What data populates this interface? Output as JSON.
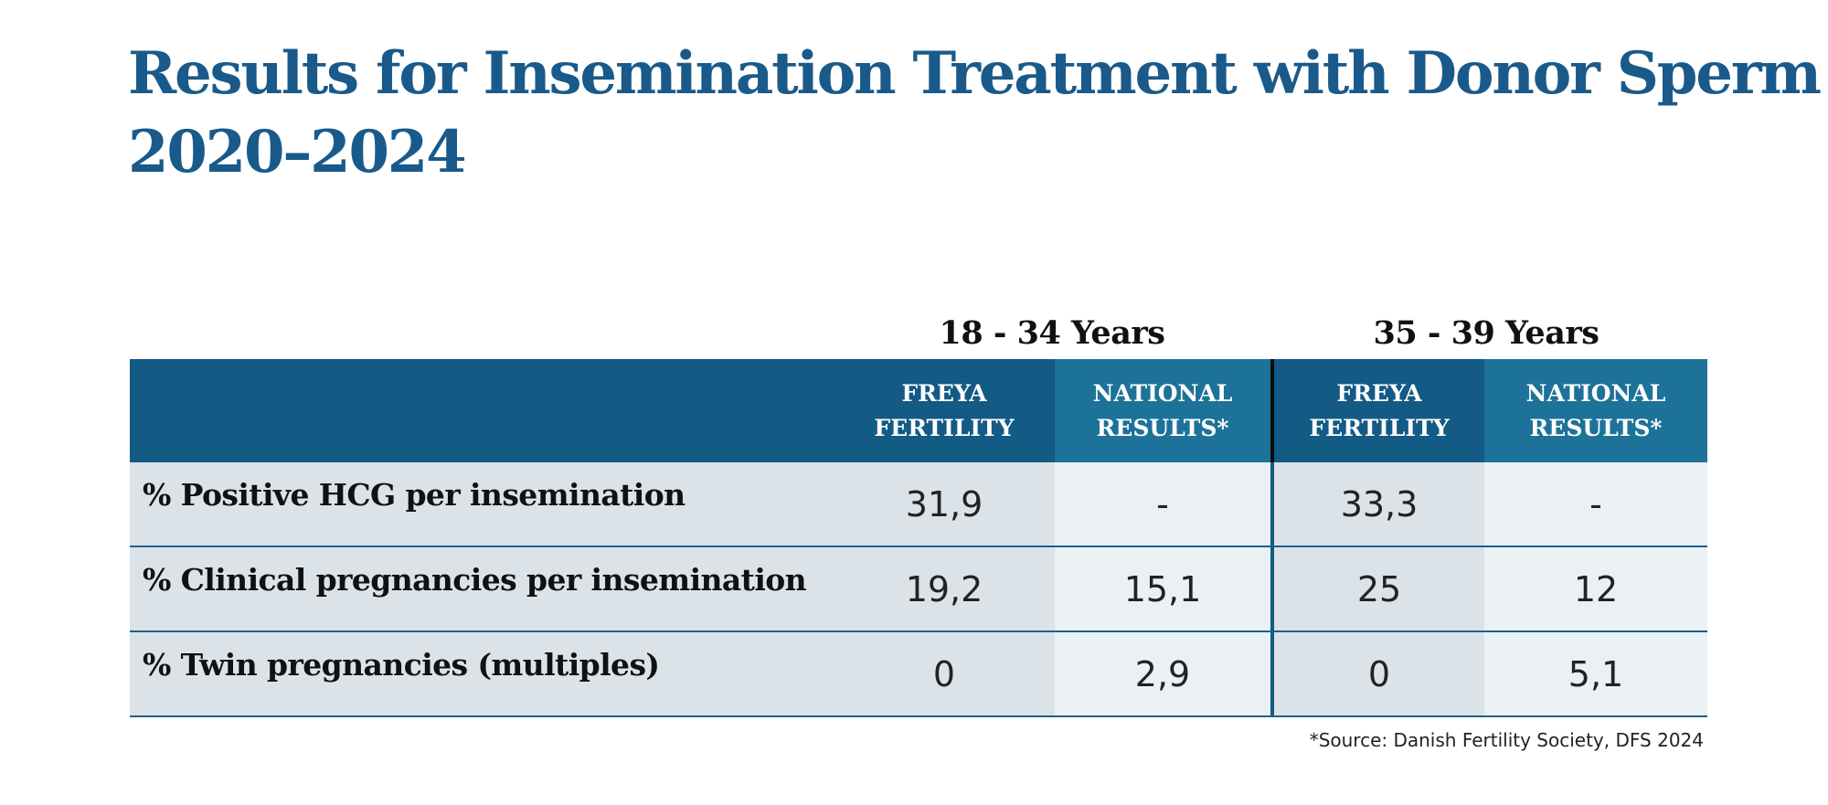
{
  "title_lines": [
    "Results for Insemination Treatment with Donor Sperm",
    "2020–2024"
  ],
  "chart_data": {
    "type": "table",
    "title": "Results for Insemination Treatment with Donor Sperm 2020–2024",
    "groups": [
      "18 - 34 Years",
      "35 - 39 Years"
    ],
    "columns": [
      "FREYA\nFERTILITY",
      "NATIONAL\nRESULTS*",
      "FREYA\nFERTILITY",
      "NATIONAL\nRESULTS*"
    ],
    "rows": [
      {
        "label": "% Positive HCG per insemination",
        "values": [
          "31,9",
          "-",
          "33,3",
          "-"
        ]
      },
      {
        "label": "% Clinical pregnancies per insemination",
        "values": [
          "19,2",
          "15,1",
          "25",
          "12"
        ]
      },
      {
        "label": "% Twin pregnancies (multiples)",
        "values": [
          "0",
          "2,9",
          "0",
          "5,1"
        ]
      }
    ],
    "footnote": "*Source: Danish Fertility Society, DFS 2024"
  },
  "colors": {
    "title": "#1a5a8a",
    "header_dark": "#135a85",
    "header_light": "#1d7299",
    "cell_dark": "#dbe3e9",
    "cell_light": "#ebf0f3"
  }
}
